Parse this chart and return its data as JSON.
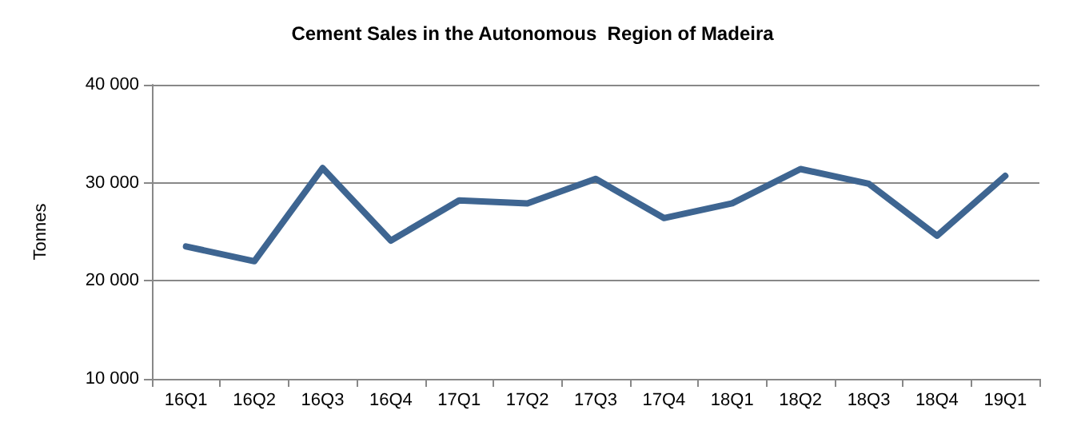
{
  "chart_data": {
    "type": "line",
    "title": "Cement Sales in the Autonomous  Region of Madeira",
    "ylabel": "Tonnes",
    "categories": [
      "16Q1",
      "16Q2",
      "16Q3",
      "16Q4",
      "17Q1",
      "17Q2",
      "17Q3",
      "17Q4",
      "18Q1",
      "18Q2",
      "18Q3",
      "18Q4",
      "19Q1"
    ],
    "series": [
      {
        "color": "#3e6591",
        "values": [
          23500,
          22000,
          31500,
          24100,
          28200,
          27900,
          30400,
          26400,
          27900,
          31400,
          29900,
          24600,
          30700
        ]
      }
    ],
    "ylim": [
      10000,
      40000
    ],
    "yticks": [
      {
        "value": 10000,
        "label": "10 000"
      },
      {
        "value": 20000,
        "label": "20 000"
      },
      {
        "value": 30000,
        "label": "30 000"
      },
      {
        "value": 40000,
        "label": "40 000"
      }
    ],
    "grid": "y",
    "marker": "none",
    "line_style": "solid"
  }
}
